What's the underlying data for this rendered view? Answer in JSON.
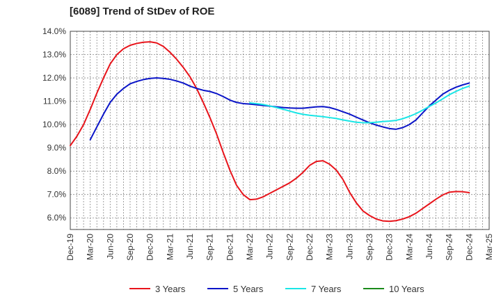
{
  "chart_data": {
    "type": "line",
    "title": "[6089]  Trend of StDev of ROE",
    "xlabel": "",
    "ylabel": "",
    "ylim": [
      5.5,
      14.0
    ],
    "yticks": [
      6.0,
      7.0,
      8.0,
      9.0,
      10.0,
      11.0,
      12.0,
      13.0,
      14.0
    ],
    "ytick_format": "percent_1dp",
    "x_tick_labels": [
      "Dec-19",
      "Mar-20",
      "Jun-20",
      "Sep-20",
      "Dec-20",
      "Mar-21",
      "Jun-21",
      "Sep-21",
      "Dec-21",
      "Mar-22",
      "Jun-22",
      "Sep-22",
      "Dec-22",
      "Mar-23",
      "Jun-23",
      "Sep-23",
      "Dec-23",
      "Mar-24",
      "Jun-24",
      "Sep-24",
      "Dec-24",
      "Mar-25"
    ],
    "x_months": [
      "Dec-19",
      "Jan-20",
      "Feb-20",
      "Mar-20",
      "Apr-20",
      "May-20",
      "Jun-20",
      "Jul-20",
      "Aug-20",
      "Sep-20",
      "Oct-20",
      "Nov-20",
      "Dec-20",
      "Jan-21",
      "Feb-21",
      "Mar-21",
      "Apr-21",
      "May-21",
      "Jun-21",
      "Jul-21",
      "Aug-21",
      "Sep-21",
      "Oct-21",
      "Nov-21",
      "Dec-21",
      "Jan-22",
      "Feb-22",
      "Mar-22",
      "Apr-22",
      "May-22",
      "Jun-22",
      "Jul-22",
      "Aug-22",
      "Sep-22",
      "Oct-22",
      "Nov-22",
      "Dec-22",
      "Jan-23",
      "Feb-23",
      "Mar-23",
      "Apr-23",
      "May-23",
      "Jun-23",
      "Jul-23",
      "Aug-23",
      "Sep-23",
      "Oct-23",
      "Nov-23",
      "Dec-23",
      "Jan-24",
      "Feb-24",
      "Mar-24",
      "Apr-24",
      "May-24",
      "Jun-24",
      "Jul-24",
      "Aug-24",
      "Sep-24",
      "Oct-24",
      "Nov-24",
      "Dec-24",
      "Jan-25",
      "Feb-25",
      "Mar-25"
    ],
    "grid": true,
    "legend_position": "bottom",
    "series": [
      {
        "name": "3 Years",
        "color": "#e8141b",
        "x": [
          "Dec-19",
          "Jan-20",
          "Feb-20",
          "Mar-20",
          "Apr-20",
          "May-20",
          "Jun-20",
          "Jul-20",
          "Aug-20",
          "Sep-20",
          "Oct-20",
          "Nov-20",
          "Dec-20",
          "Jan-21",
          "Feb-21",
          "Mar-21",
          "Apr-21",
          "May-21",
          "Jun-21",
          "Jul-21",
          "Aug-21",
          "Sep-21",
          "Oct-21",
          "Nov-21",
          "Dec-21",
          "Jan-22",
          "Feb-22",
          "Mar-22",
          "Apr-22",
          "May-22",
          "Jun-22",
          "Jul-22",
          "Aug-22",
          "Sep-22",
          "Oct-22",
          "Nov-22",
          "Dec-22",
          "Jan-23",
          "Feb-23",
          "Mar-23",
          "Apr-23",
          "May-23",
          "Jun-23",
          "Jul-23",
          "Aug-23",
          "Sep-23",
          "Oct-23",
          "Nov-23",
          "Dec-23",
          "Jan-24",
          "Feb-24",
          "Mar-24",
          "Apr-24",
          "May-24",
          "Jun-24",
          "Jul-24",
          "Aug-24",
          "Sep-24",
          "Oct-24",
          "Nov-24",
          "Dec-24"
        ],
        "values": [
          9.1,
          9.5,
          10.0,
          10.65,
          11.35,
          12.0,
          12.6,
          13.0,
          13.25,
          13.4,
          13.48,
          13.53,
          13.55,
          13.5,
          13.35,
          13.1,
          12.8,
          12.45,
          12.05,
          11.55,
          10.95,
          10.3,
          9.6,
          8.8,
          8.05,
          7.4,
          7.0,
          6.78,
          6.8,
          6.9,
          7.05,
          7.2,
          7.35,
          7.5,
          7.7,
          7.95,
          8.25,
          8.42,
          8.45,
          8.3,
          8.05,
          7.65,
          7.1,
          6.65,
          6.3,
          6.1,
          5.95,
          5.87,
          5.85,
          5.88,
          5.95,
          6.05,
          6.2,
          6.4,
          6.6,
          6.8,
          6.98,
          7.1,
          7.13,
          7.12,
          7.08
        ]
      },
      {
        "name": "5 Years",
        "color": "#0a14c8",
        "x": [
          "Mar-20",
          "Apr-20",
          "May-20",
          "Jun-20",
          "Jul-20",
          "Aug-20",
          "Sep-20",
          "Oct-20",
          "Nov-20",
          "Dec-20",
          "Jan-21",
          "Feb-21",
          "Mar-21",
          "Apr-21",
          "May-21",
          "Jun-21",
          "Jul-21",
          "Aug-21",
          "Sep-21",
          "Oct-21",
          "Nov-21",
          "Dec-21",
          "Jan-22",
          "Feb-22",
          "Mar-22",
          "Apr-22",
          "May-22",
          "Jun-22",
          "Jul-22",
          "Aug-22",
          "Sep-22",
          "Oct-22",
          "Nov-22",
          "Dec-22",
          "Jan-23",
          "Feb-23",
          "Mar-23",
          "Apr-23",
          "May-23",
          "Jun-23",
          "Jul-23",
          "Aug-23",
          "Sep-23",
          "Oct-23",
          "Nov-23",
          "Dec-23",
          "Jan-24",
          "Feb-24",
          "Mar-24",
          "Apr-24",
          "May-24",
          "Jun-24",
          "Jul-24",
          "Aug-24",
          "Sep-24",
          "Oct-24",
          "Nov-24",
          "Dec-24"
        ],
        "values": [
          9.35,
          9.9,
          10.45,
          10.95,
          11.3,
          11.55,
          11.75,
          11.85,
          11.93,
          11.98,
          12.0,
          11.98,
          11.94,
          11.87,
          11.78,
          11.65,
          11.55,
          11.47,
          11.42,
          11.33,
          11.2,
          11.05,
          10.95,
          10.9,
          10.88,
          10.85,
          10.82,
          10.79,
          10.76,
          10.73,
          10.71,
          10.7,
          10.7,
          10.73,
          10.76,
          10.77,
          10.73,
          10.65,
          10.55,
          10.45,
          10.32,
          10.2,
          10.08,
          9.98,
          9.9,
          9.83,
          9.8,
          9.87,
          10.0,
          10.2,
          10.5,
          10.8,
          11.05,
          11.3,
          11.47,
          11.6,
          11.7,
          11.78
        ]
      },
      {
        "name": "7 Years",
        "color": "#19e6e6",
        "x": [
          "Mar-22",
          "Apr-22",
          "May-22",
          "Jun-22",
          "Jul-22",
          "Aug-22",
          "Sep-22",
          "Oct-22",
          "Nov-22",
          "Dec-22",
          "Jan-23",
          "Feb-23",
          "Mar-23",
          "Apr-23",
          "May-23",
          "Jun-23",
          "Jul-23",
          "Aug-23",
          "Sep-23",
          "Oct-23",
          "Nov-23",
          "Dec-23",
          "Jan-24",
          "Feb-24",
          "Mar-24",
          "Apr-24",
          "May-24",
          "Jun-24",
          "Jul-24",
          "Aug-24",
          "Sep-24",
          "Oct-24",
          "Nov-24",
          "Dec-24"
        ],
        "values": [
          10.93,
          10.9,
          10.86,
          10.8,
          10.73,
          10.66,
          10.58,
          10.5,
          10.44,
          10.4,
          10.37,
          10.34,
          10.3,
          10.26,
          10.2,
          10.15,
          10.1,
          10.08,
          10.08,
          10.1,
          10.13,
          10.15,
          10.18,
          10.25,
          10.35,
          10.47,
          10.62,
          10.78,
          10.93,
          11.1,
          11.28,
          11.42,
          11.55,
          11.65
        ]
      },
      {
        "name": "10 Years",
        "color": "#1a8a1a",
        "x": [],
        "values": []
      }
    ]
  }
}
